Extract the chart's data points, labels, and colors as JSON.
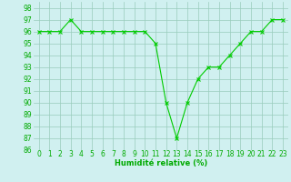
{
  "x": [
    0,
    1,
    2,
    3,
    4,
    5,
    6,
    7,
    8,
    9,
    10,
    11,
    12,
    13,
    14,
    15,
    16,
    17,
    18,
    19,
    20,
    21,
    22,
    23
  ],
  "y": [
    96,
    96,
    96,
    97,
    96,
    96,
    96,
    96,
    96,
    96,
    96,
    95,
    90,
    87,
    90,
    92,
    93,
    93,
    94,
    95,
    96,
    96,
    97,
    97
  ],
  "xlabel": "Humidité relative (%)",
  "ylim": [
    86,
    98.5
  ],
  "xlim": [
    -0.5,
    23.5
  ],
  "yticks": [
    86,
    87,
    88,
    89,
    90,
    91,
    92,
    93,
    94,
    95,
    96,
    97,
    98
  ],
  "xticks": [
    0,
    1,
    2,
    3,
    4,
    5,
    6,
    7,
    8,
    9,
    10,
    11,
    12,
    13,
    14,
    15,
    16,
    17,
    18,
    19,
    20,
    21,
    22,
    23
  ],
  "line_color": "#00cc00",
  "marker": "x",
  "bg_color": "#d0f0f0",
  "grid_color": "#99ccbb",
  "xlabel_color": "#00aa00",
  "tick_color": "#00aa00",
  "label_fontsize": 6.0,
  "tick_fontsize": 5.5
}
